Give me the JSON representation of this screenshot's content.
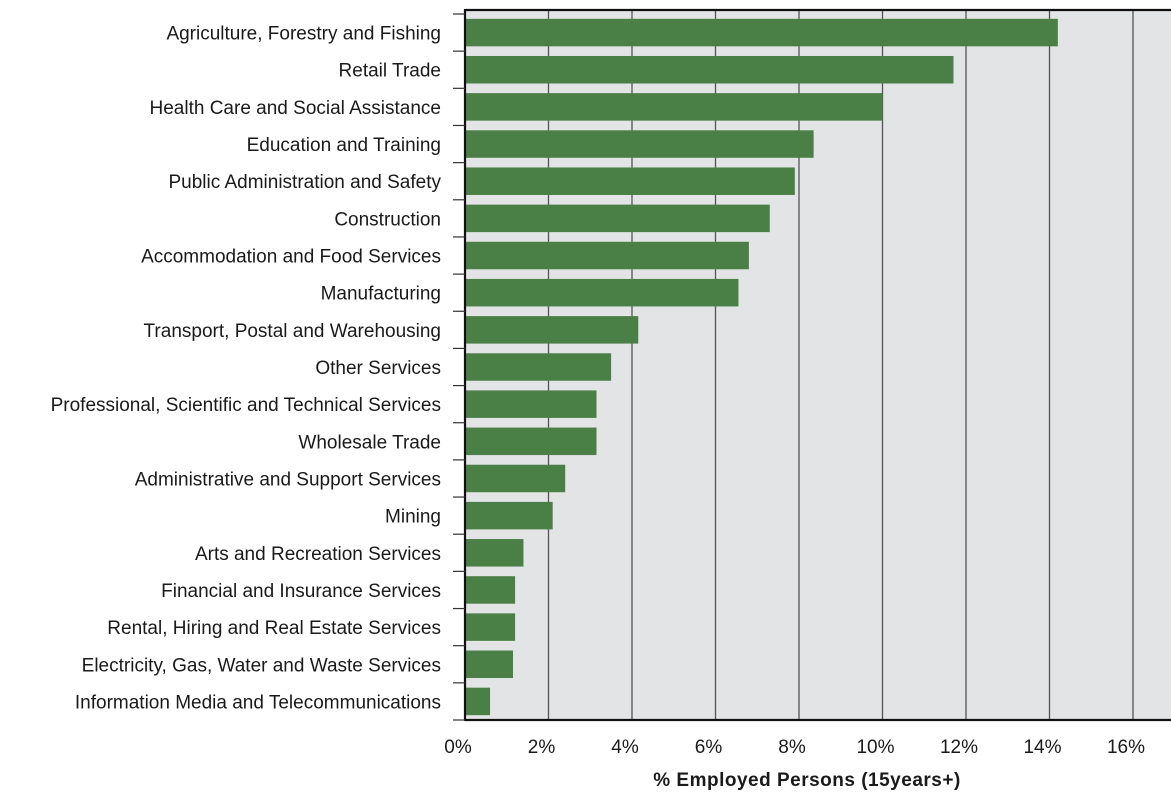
{
  "chart_data": {
    "type": "bar",
    "orientation": "horizontal",
    "categories": [
      "Agriculture, Forestry and Fishing",
      "Retail Trade",
      "Health Care and Social Assistance",
      "Education and Training",
      "Public Administration and Safety",
      "Construction",
      "Accommodation and Food Services",
      "Manufacturing",
      "Transport, Postal and Warehousing",
      "Other Services",
      "Professional, Scientific and Technical Services",
      "Wholesale Trade",
      "Administrative and Support Services",
      "Mining",
      "Arts and Recreation Services",
      "Financial and Insurance Services",
      "Rental, Hiring and Real Estate Services",
      "Electricity, Gas, Water and Waste Services",
      "Information Media and Telecommunications"
    ],
    "values": [
      14.2,
      11.7,
      10.0,
      8.35,
      7.9,
      7.3,
      6.8,
      6.55,
      4.15,
      3.5,
      3.15,
      3.15,
      2.4,
      2.1,
      1.4,
      1.2,
      1.2,
      1.15,
      0.6
    ],
    "xlim": [
      0,
      16
    ],
    "x_ticks": [
      "0%",
      "2%",
      "4%",
      "6%",
      "8%",
      "10%",
      "12%",
      "14%",
      "16%"
    ],
    "xlabel": "% Employed Persons (15years+)",
    "ylabel": "",
    "title": "",
    "grid": "vertical",
    "colors": {
      "bar": "#4a8045",
      "plot_background": "#e3e4e6",
      "grid": "#555555",
      "axis": "#111111"
    }
  }
}
